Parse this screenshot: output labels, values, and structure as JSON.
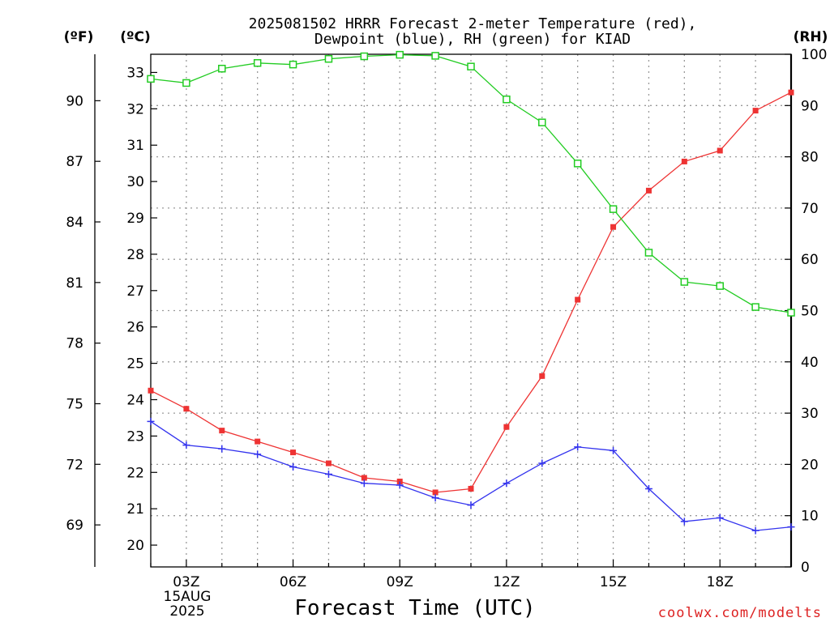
{
  "chart_data": {
    "type": "line",
    "title_line1": "2025081502 HRRR Forecast 2-meter Temperature (red),",
    "title_line2": "Dewpoint (blue), RH (green) for KIAD",
    "xlabel": "Forecast Time (UTC)",
    "credit": "coolwx.com/modelts",
    "left_unit_f": "(ºF)",
    "left_unit_c": "(ºC)",
    "right_unit": "(RH)",
    "date_line1": "15AUG",
    "date_line2": "2025",
    "x": [
      "02Z",
      "03Z",
      "04Z",
      "05Z",
      "06Z",
      "07Z",
      "08Z",
      "09Z",
      "10Z",
      "11Z",
      "12Z",
      "13Z",
      "14Z",
      "15Z",
      "16Z",
      "17Z",
      "18Z",
      "19Z",
      "20Z"
    ],
    "x_ticks": [
      "03Z",
      "06Z",
      "09Z",
      "12Z",
      "15Z",
      "18Z"
    ],
    "ylim_c": [
      19.4,
      33.5
    ],
    "yticks_c": [
      20,
      21,
      22,
      23,
      24,
      25,
      26,
      27,
      28,
      29,
      30,
      31,
      32,
      33
    ],
    "yticks_f": [
      69,
      72,
      75,
      78,
      81,
      84,
      87,
      90
    ],
    "ylim_rh": [
      0,
      100
    ],
    "yticks_rh": [
      0,
      10,
      20,
      30,
      40,
      50,
      60,
      70,
      80,
      90,
      100
    ],
    "grid": true,
    "series": [
      {
        "name": "2-meter Temperature",
        "color": "#ee3333",
        "marker": "filled-square",
        "axis": "C",
        "values": [
          24.25,
          23.75,
          23.15,
          22.85,
          22.55,
          22.25,
          21.85,
          21.75,
          21.45,
          21.55,
          23.25,
          24.65,
          26.75,
          28.75,
          29.75,
          30.55,
          30.85,
          31.95,
          32.45
        ]
      },
      {
        "name": "Dewpoint",
        "color": "#3333ee",
        "marker": "plus",
        "axis": "C",
        "values": [
          23.4,
          22.75,
          22.65,
          22.5,
          22.15,
          21.95,
          21.7,
          21.65,
          21.3,
          21.1,
          21.7,
          22.25,
          22.7,
          22.6,
          21.55,
          20.65,
          20.75,
          20.4,
          20.5
        ]
      },
      {
        "name": "RH",
        "color": "#22cc22",
        "marker": "open-square",
        "axis": "RH",
        "values": [
          95.2,
          94.4,
          97.2,
          98.3,
          98.0,
          99.1,
          99.6,
          99.9,
          99.7,
          97.6,
          91.2,
          86.7,
          78.7,
          69.8,
          61.3,
          55.6,
          54.8,
          50.7,
          49.6
        ]
      }
    ]
  }
}
